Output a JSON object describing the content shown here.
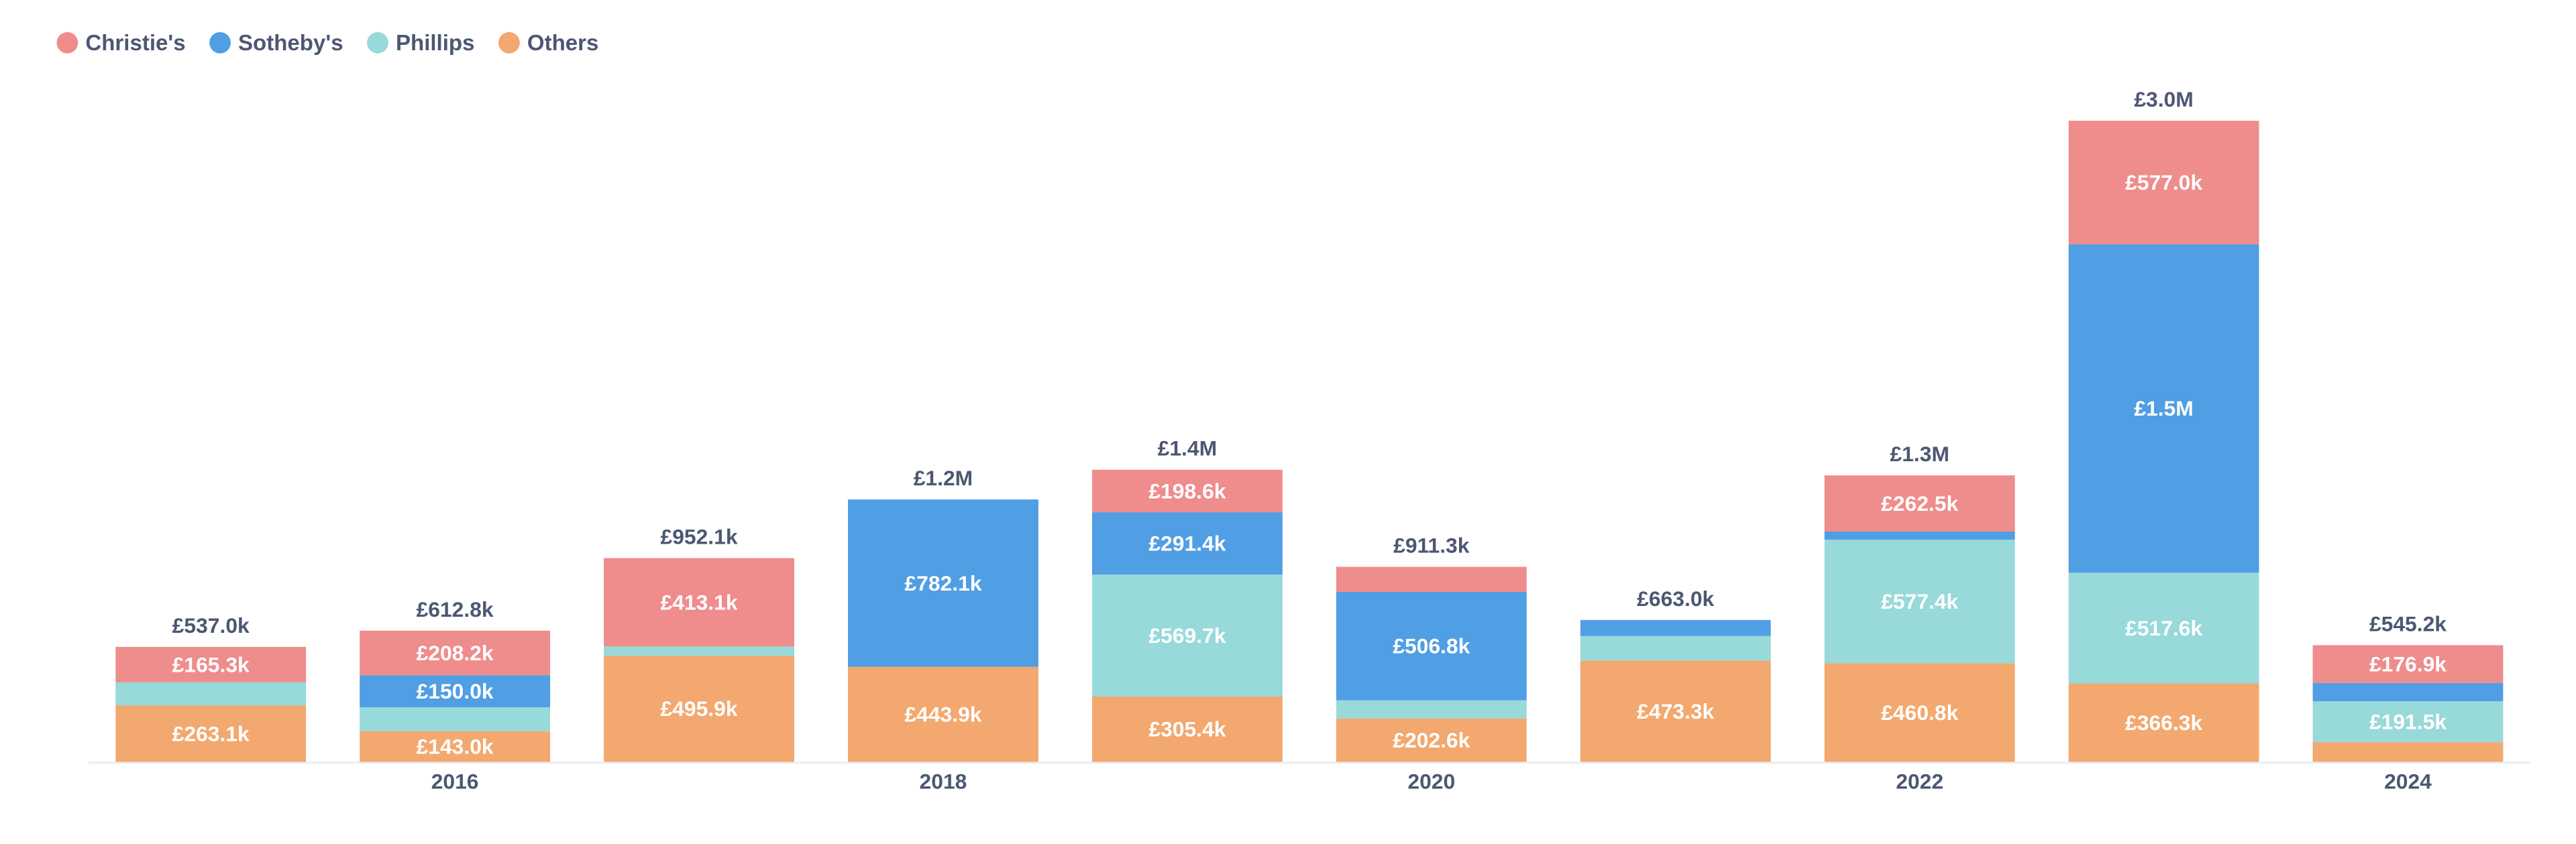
{
  "chart_data": {
    "type": "stacked_bar",
    "categories": [
      null,
      "2016",
      null,
      "2018",
      null,
      "2020",
      null,
      "2022",
      null,
      "2024"
    ],
    "series": [
      {
        "name": "Christie's",
        "color": "#ef8c8c",
        "values": [
          165300,
          208200,
          413100,
          0,
          198600,
          116900,
          0,
          262500,
          577000,
          176900
        ],
        "value_labels": [
          "£165.3k",
          "£208.2k",
          "£413.1k",
          null,
          "£198.6k",
          null,
          null,
          "£262.5k",
          "£577.0k",
          "£176.9k"
        ]
      },
      {
        "name": "Sotheby's",
        "color": "#509ee3",
        "values": [
          0,
          150000,
          0,
          782100,
          291400,
          506800,
          74700,
          38000,
          1535100,
          85000
        ],
        "value_labels": [
          null,
          "£150.0k",
          null,
          "£782.1k",
          "£291.4k",
          "£506.8k",
          null,
          null,
          "£1.5M",
          null
        ]
      },
      {
        "name": "Phillips",
        "color": "#98d9d9",
        "values": [
          108600,
          111600,
          43100,
          0,
          569700,
          85000,
          115000,
          577400,
          517600,
          191500
        ],
        "value_labels": [
          null,
          null,
          null,
          null,
          "£569.7k",
          null,
          null,
          "£577.4k",
          "£517.6k",
          "£191.5k"
        ]
      },
      {
        "name": "Others",
        "color": "#f2a86f",
        "values": [
          263100,
          143000,
          495900,
          443900,
          305400,
          202600,
          473300,
          460800,
          366300,
          91800
        ],
        "value_labels": [
          "£263.1k",
          "£143.0k",
          "£495.9k",
          "£443.9k",
          "£305.4k",
          "£202.6k",
          "£473.3k",
          "£460.8k",
          "£366.3k",
          null
        ]
      }
    ],
    "totals": [
      537000,
      612800,
      952100,
      1226000,
      1365100,
      911300,
      663000,
      1338700,
      2996000,
      545200
    ],
    "total_labels": [
      "£537.0k",
      "£612.8k",
      "£952.1k",
      "£1.2M",
      "£1.4M",
      "£911.3k",
      "£663.0k",
      "£1.3M",
      "£3.0M",
      "£545.2k"
    ],
    "ylim": [
      0,
      3000000
    ]
  }
}
